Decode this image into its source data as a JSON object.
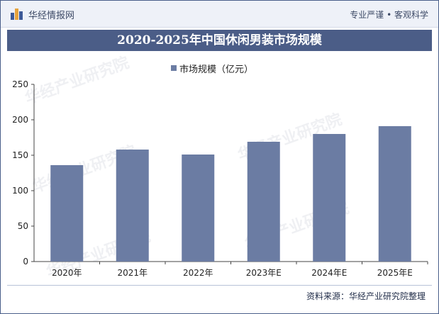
{
  "header": {
    "logo_text": "华经情报网",
    "slogan": "专业严谨 • 客观科学"
  },
  "watermark": "华经产业研究院",
  "chart_data": {
    "type": "bar",
    "title": "2020-2025年中国休闲男装市场规模",
    "categories": [
      "2020年",
      "2021年",
      "2022年",
      "2023年E",
      "2024年E",
      "2025年E"
    ],
    "series": [
      {
        "name": "市场规模（亿元）",
        "values": [
          136,
          158,
          151,
          169,
          180,
          191
        ]
      }
    ],
    "yticks": [
      0,
      50,
      100,
      150,
      200,
      250
    ],
    "ylim": [
      0,
      250
    ],
    "bar_color": "#6b7ca3",
    "legend_position": "top"
  },
  "source": "资料来源：华经产业研究院整理"
}
